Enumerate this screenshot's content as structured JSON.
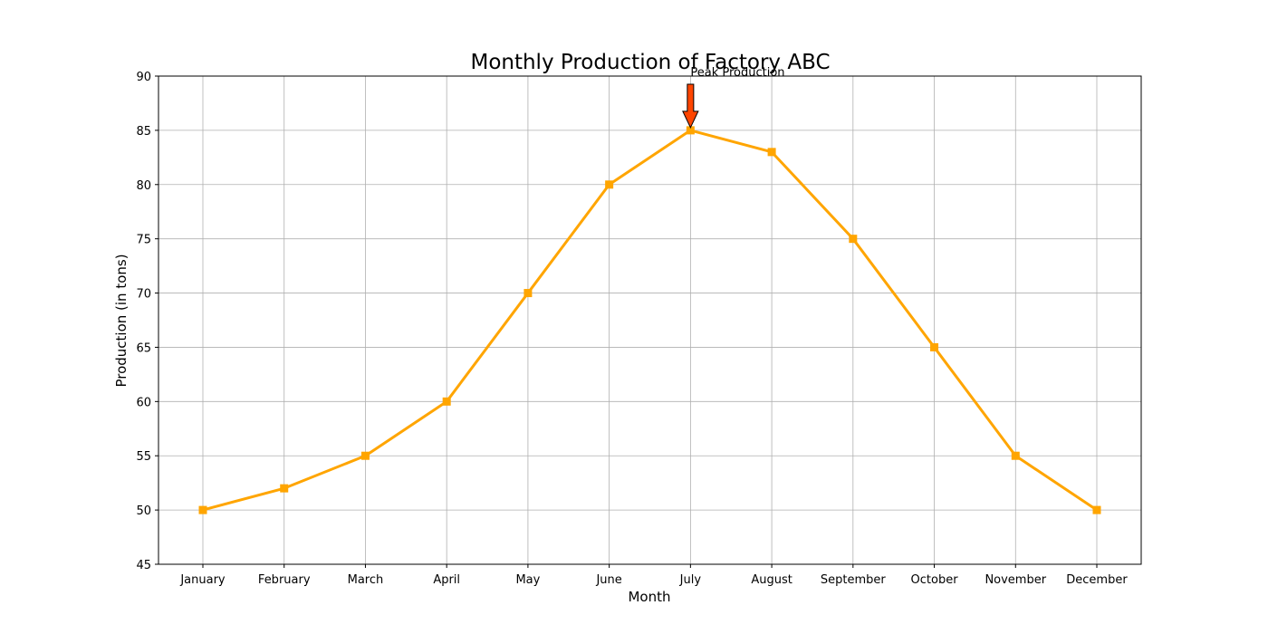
{
  "chart_data": {
    "type": "line",
    "title": "Monthly Production of Factory ABC",
    "xlabel": "Month",
    "ylabel": "Production (in tons)",
    "categories": [
      "January",
      "February",
      "March",
      "April",
      "May",
      "June",
      "July",
      "August",
      "September",
      "October",
      "November",
      "December"
    ],
    "series": [
      {
        "values": [
          50,
          52,
          55,
          60,
          70,
          80,
          85,
          83,
          75,
          65,
          55,
          50
        ],
        "color": "#FFA500",
        "marker": "square"
      }
    ],
    "ylim": [
      45,
      90
    ],
    "yticks": [
      45,
      50,
      55,
      60,
      65,
      70,
      75,
      80,
      85,
      90
    ],
    "grid": true,
    "annotation": {
      "text": "Peak Production",
      "category": "July",
      "value": 85,
      "arrow_color": "#FF4500"
    }
  }
}
